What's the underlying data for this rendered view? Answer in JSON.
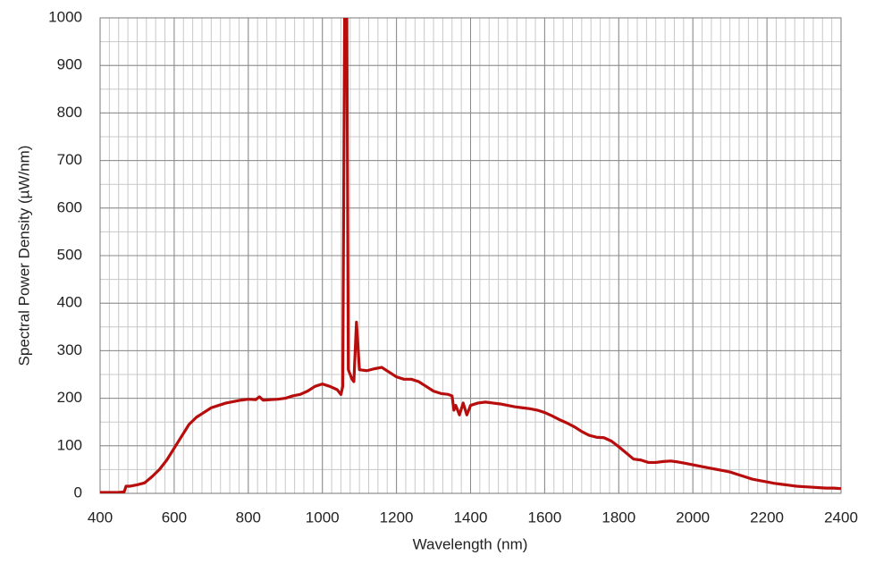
{
  "chart_data": {
    "type": "line",
    "x_label": "Wavelength (nm)",
    "y_label": "Spectral Power Density (µW/nm)",
    "xlim": [
      400,
      2400
    ],
    "ylim": [
      0,
      1000
    ],
    "xticks": [
      400,
      600,
      800,
      1000,
      1200,
      1400,
      1600,
      1800,
      2000,
      2200,
      2400
    ],
    "yticks": [
      0,
      100,
      200,
      300,
      400,
      500,
      600,
      700,
      800,
      900,
      1000
    ],
    "grid": true,
    "minor_grid": {
      "x": 25,
      "y": 50
    },
    "x": [
      400,
      450,
      465,
      470,
      480,
      500,
      520,
      540,
      560,
      580,
      600,
      620,
      640,
      660,
      680,
      700,
      720,
      740,
      760,
      780,
      800,
      820,
      830,
      840,
      860,
      880,
      900,
      920,
      940,
      960,
      980,
      1000,
      1020,
      1040,
      1050,
      1055,
      1060,
      1066,
      1070,
      1080,
      1085,
      1092,
      1100,
      1120,
      1140,
      1160,
      1180,
      1200,
      1220,
      1240,
      1260,
      1280,
      1300,
      1320,
      1340,
      1350,
      1355,
      1360,
      1370,
      1380,
      1390,
      1400,
      1420,
      1440,
      1460,
      1480,
      1500,
      1520,
      1540,
      1560,
      1580,
      1600,
      1620,
      1640,
      1660,
      1680,
      1700,
      1720,
      1740,
      1760,
      1780,
      1800,
      1820,
      1840,
      1860,
      1880,
      1900,
      1920,
      1940,
      1960,
      1980,
      2000,
      2020,
      2040,
      2060,
      2080,
      2100,
      2120,
      2140,
      2160,
      2180,
      2200,
      2220,
      2240,
      2260,
      2280,
      2300,
      2320,
      2340,
      2360,
      2380,
      2400
    ],
    "series": [
      {
        "color": "#b80d0d",
        "values": [
          2,
          2,
          3,
          15,
          15,
          18,
          22,
          35,
          50,
          70,
          95,
          120,
          145,
          160,
          170,
          180,
          185,
          190,
          193,
          196,
          198,
          197,
          203,
          196,
          197,
          198,
          200,
          205,
          208,
          215,
          225,
          230,
          225,
          218,
          208,
          225,
          1000,
          1000,
          260,
          240,
          235,
          360,
          260,
          258,
          262,
          265,
          255,
          245,
          240,
          240,
          235,
          225,
          215,
          210,
          208,
          205,
          175,
          185,
          165,
          190,
          165,
          185,
          190,
          192,
          190,
          188,
          185,
          182,
          180,
          178,
          175,
          170,
          163,
          155,
          148,
          140,
          130,
          122,
          118,
          117,
          110,
          98,
          85,
          72,
          70,
          65,
          65,
          67,
          68,
          66,
          63,
          60,
          57,
          54,
          51,
          48,
          45,
          40,
          35,
          30,
          27,
          24,
          21,
          19,
          17,
          15,
          14,
          13,
          12,
          11,
          11,
          10
        ]
      }
    ]
  }
}
